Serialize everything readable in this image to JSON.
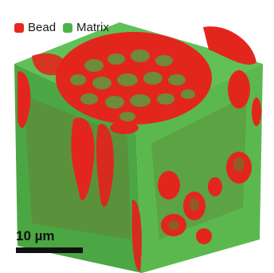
{
  "legend": {
    "items": [
      {
        "label": "Bead",
        "color": "#e8281e"
      },
      {
        "label": "Matrix",
        "color": "#4cb34a"
      }
    ]
  },
  "scale_bar": {
    "label": "10 µm"
  },
  "colors": {
    "matrix_top": "#5fbf55",
    "matrix_left": "#4aa744",
    "matrix_right": "#56b64d",
    "bead": "#e3261d",
    "bead_dark": "#7a5a22"
  }
}
